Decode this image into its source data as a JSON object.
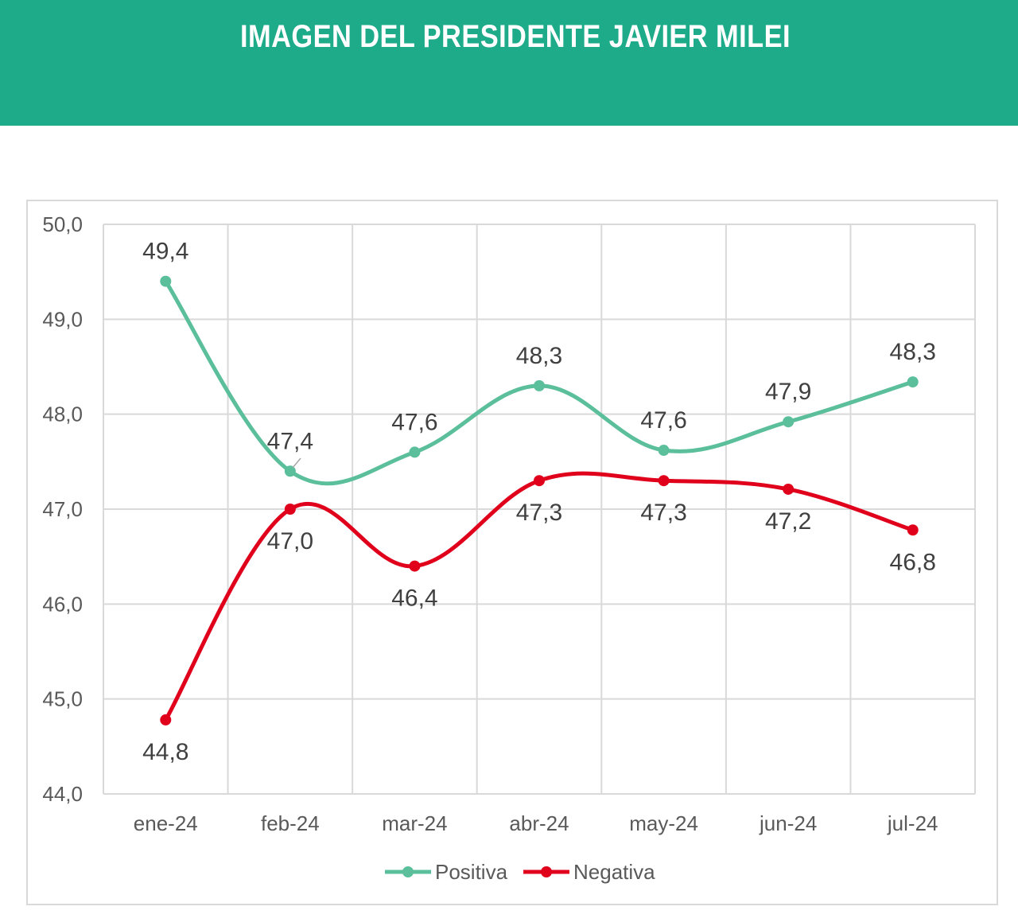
{
  "header": {
    "title": "IMAGEN DEL PRESIDENTE JAVIER MILEI",
    "background_color": "#1dab8a"
  },
  "chart_data": {
    "type": "line",
    "title": "IMAGEN DEL PRESIDENTE JAVIER MILEI",
    "categories": [
      "ene-24",
      "feb-24",
      "mar-24",
      "abr-24",
      "may-24",
      "jun-24",
      "jul-24"
    ],
    "y_ticks": [
      "44,0",
      "45,0",
      "46,0",
      "47,0",
      "48,0",
      "49,0",
      "50,0"
    ],
    "ylim": [
      44,
      50
    ],
    "grid": true,
    "legend_position": "bottom",
    "series": [
      {
        "name": "Positiva",
        "color": "#5bbf9c",
        "values": [
          49.4,
          47.4,
          47.6,
          48.3,
          47.62,
          47.92,
          48.34
        ],
        "labels": [
          "49,4",
          "47,4",
          "47,6",
          "48,3",
          "47,6",
          "47,9",
          "48,3"
        ],
        "label_position": "above"
      },
      {
        "name": "Negativa",
        "color": "#e0001b",
        "values": [
          44.78,
          47.0,
          46.4,
          47.3,
          47.3,
          47.21,
          46.78
        ],
        "labels": [
          "44,8",
          "47,0",
          "46,4",
          "47,3",
          "47,3",
          "47,2",
          "46,8"
        ],
        "label_position": "below"
      }
    ]
  }
}
